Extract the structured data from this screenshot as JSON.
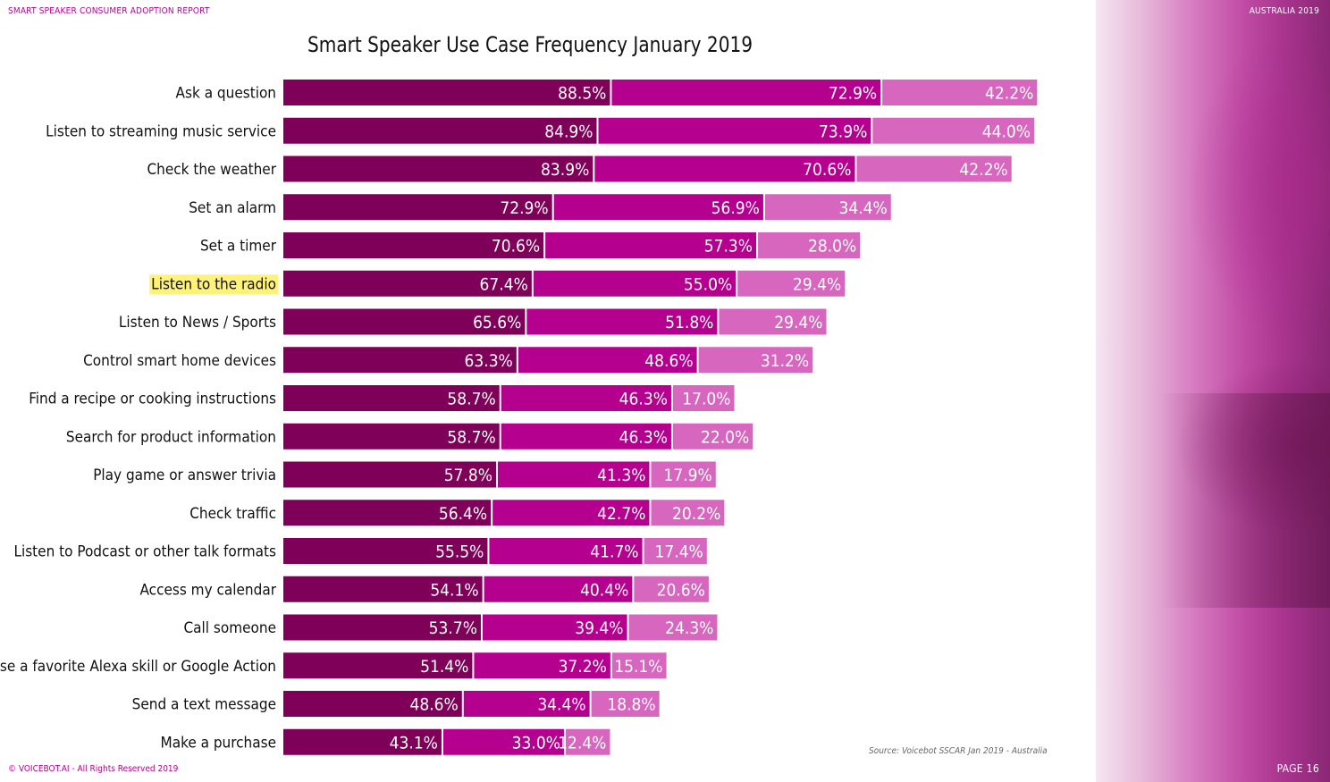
{
  "header": {
    "report_title": "SMART SPEAKER CONSUMER ADOPTION REPORT",
    "region": "AUSTRALIA 2019"
  },
  "footer": {
    "copyright": "© VOICEBOT.AI - All Rights Reserved 2019",
    "page": "PAGE 16",
    "source": "Source: Voicebot SSCAR Jan 2019 - Australia"
  },
  "colors": {
    "series_1": "#7e0058",
    "series_2": "#b5008f",
    "series_3": "#d766bf",
    "highlight": "#fff27a",
    "brand": "#b5008f"
  },
  "chart_data": {
    "type": "bar",
    "orientation": "horizontal",
    "stacked": true,
    "title": "Smart Speaker Use Case Frequency January 2019",
    "grid": false,
    "legend": "none",
    "categories": [
      "Ask a question",
      "Listen to streaming music service",
      "Check the weather",
      "Set an alarm",
      "Set a timer",
      "Listen to the radio",
      "Listen to News / Sports",
      "Control smart home devices",
      "Find a recipe or cooking instructions",
      "Search for product information",
      "Play game or answer trivia",
      "Check traffic",
      "Listen to Podcast or other talk formats",
      "Access my calendar",
      "Call someone",
      "Use a favorite Alexa skill or Google Action",
      "Send a text message",
      "Make a purchase"
    ],
    "highlighted_category": "Listen to the radio",
    "series": [
      {
        "values": [
          88.5,
          84.9,
          83.9,
          72.9,
          70.6,
          67.4,
          65.6,
          63.3,
          58.7,
          58.7,
          57.8,
          56.4,
          55.5,
          54.1,
          53.7,
          51.4,
          48.6,
          43.1
        ]
      },
      {
        "values": [
          72.9,
          73.9,
          70.6,
          56.9,
          57.3,
          55.0,
          51.8,
          48.6,
          46.3,
          46.3,
          41.3,
          42.7,
          41.7,
          40.4,
          39.4,
          37.2,
          34.4,
          33.0
        ]
      },
      {
        "values": [
          42.2,
          44.0,
          42.2,
          34.4,
          28.0,
          29.4,
          29.4,
          31.2,
          17.0,
          22.0,
          17.9,
          20.2,
          17.4,
          20.6,
          24.3,
          15.1,
          18.8,
          12.4
        ]
      }
    ],
    "value_labels": [
      [
        "88.5%",
        "84.9%",
        "83.9%",
        "72.9%",
        "70.6%",
        "67.4%",
        "65.6%",
        "63.3%",
        "58.7%",
        "58.7%",
        "57.8%",
        "56.4%",
        "55.5%",
        "54.1%",
        "53.7%",
        "51.4%",
        "48.6%",
        "43.1%"
      ],
      [
        "72.9%",
        "73.9%",
        "70.6%",
        "56.9%",
        "57.3%",
        "55.0%",
        "51.8%",
        "48.6%",
        "46.3%",
        "46.3%",
        "41.3%",
        "42.7%",
        "41.7%",
        "40.4%",
        "39.4%",
        "37.2%",
        "34.4%",
        "33.0%"
      ],
      [
        "42.2%",
        "44.0%",
        "42.2%",
        "34.4%",
        "28.0%",
        "29.4%",
        "29.4%",
        "31.2%",
        "17.0%",
        "22.0%",
        "17.9%",
        "20.2%",
        "17.4%",
        "20.6%",
        "24.3%",
        "15.1%",
        "18.8%",
        "12.4%"
      ]
    ]
  }
}
